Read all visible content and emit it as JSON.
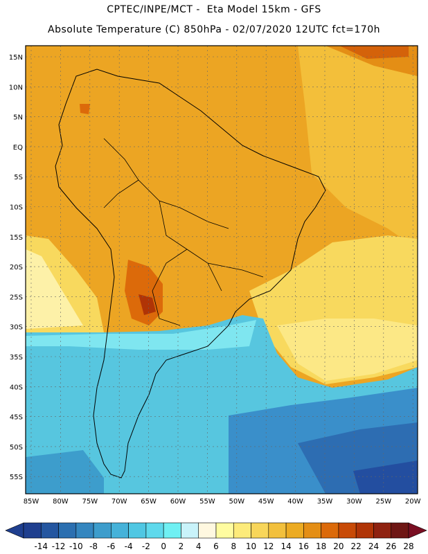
{
  "title_line1": "CPTEC/INPE/MCT -  Eta Model 15km - GFS",
  "title_line2": "Absolute Temperature (C) 850hPa - 02/07/2020 12UTC fct=170h",
  "lat_labels": [
    "15N",
    "10N",
    "5N",
    "EQ",
    "5S",
    "10S",
    "15S",
    "20S",
    "25S",
    "30S",
    "35S",
    "40S",
    "45S",
    "50S",
    "55S"
  ],
  "lon_labels": [
    "85W",
    "80W",
    "75W",
    "70W",
    "65W",
    "60W",
    "55W",
    "50W",
    "45W",
    "40W",
    "35W",
    "30W",
    "25W",
    "20W"
  ],
  "colorbar": {
    "labels": [
      "-14",
      "-12",
      "-10",
      "-8",
      "-6",
      "-4",
      "-2",
      "0",
      "2",
      "4",
      "6",
      "8",
      "10",
      "12",
      "14",
      "16",
      "18",
      "20",
      "22",
      "24",
      "26",
      "28"
    ],
    "colors": [
      "#1f3f8f",
      "#2456a0",
      "#2b6fb0",
      "#3486bf",
      "#3d9dcc",
      "#45b2d9",
      "#4fc7e3",
      "#5ed9ec",
      "#6ff0f3",
      "#c9f3fa",
      "#fff8e0",
      "#fffca0",
      "#fdeb7a",
      "#f8d65a",
      "#f2c03c",
      "#ecab22",
      "#e48e15",
      "#dc6a0a",
      "#c84a06",
      "#b03406",
      "#8f2210",
      "#6e1614"
    ]
  },
  "region_colors": {
    "ocean_south": "#234ea0",
    "ocean_mid": "#3a8fca",
    "cold_band": "#57c6df",
    "cool_band": "#7fe6f0",
    "warm_orange": "#eca523",
    "warm_yellow": "#f7d866",
    "pale_yellow": "#fcf4b0",
    "hot_red": "#c8520a"
  }
}
